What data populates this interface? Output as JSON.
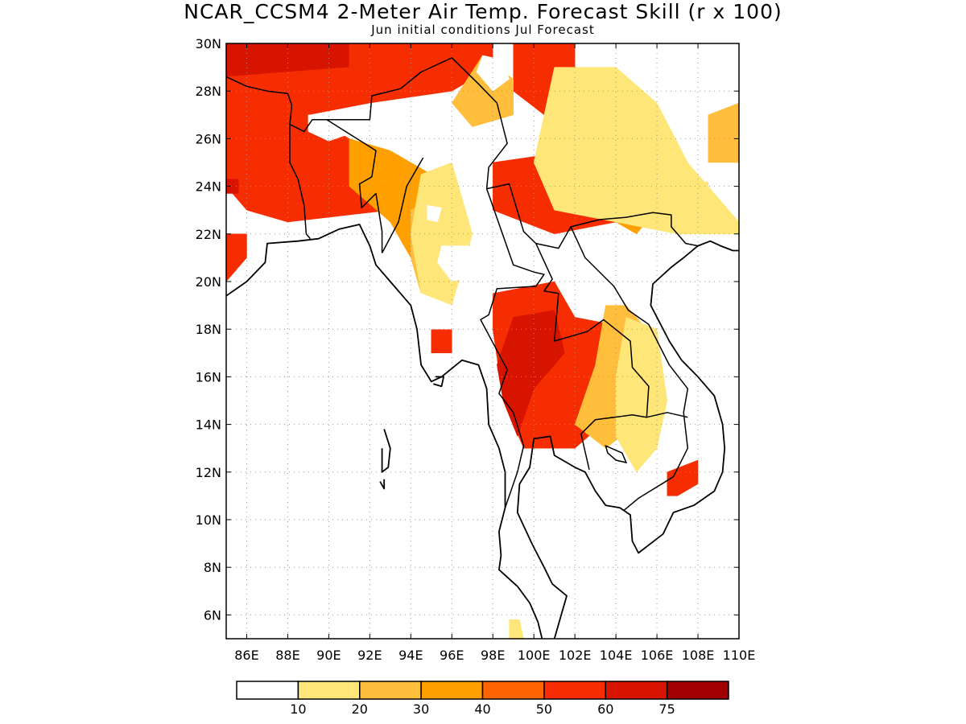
{
  "title": "NCAR_CCSM4 2-Meter Air Temp. Forecast Skill (r x 100)",
  "subtitle": "Jun initial conditions  Jul Forecast",
  "map": {
    "lon_range": [
      85,
      110
    ],
    "lat_range": [
      5,
      30
    ],
    "lat_ticks": [
      {
        "value": 30,
        "label": "30N"
      },
      {
        "value": 28,
        "label": "28N"
      },
      {
        "value": 26,
        "label": "26N"
      },
      {
        "value": 24,
        "label": "24N"
      },
      {
        "value": 22,
        "label": "22N"
      },
      {
        "value": 20,
        "label": "20N"
      },
      {
        "value": 18,
        "label": "18N"
      },
      {
        "value": 16,
        "label": "16N"
      },
      {
        "value": 14,
        "label": "14N"
      },
      {
        "value": 12,
        "label": "12N"
      },
      {
        "value": 10,
        "label": "10N"
      },
      {
        "value": 8,
        "label": "8N"
      },
      {
        "value": 6,
        "label": "6N"
      }
    ],
    "lon_ticks": [
      {
        "value": 86,
        "label": "86E"
      },
      {
        "value": 88,
        "label": "88E"
      },
      {
        "value": 90,
        "label": "90E"
      },
      {
        "value": 92,
        "label": "92E"
      },
      {
        "value": 94,
        "label": "94E"
      },
      {
        "value": 96,
        "label": "96E"
      },
      {
        "value": 98,
        "label": "98E"
      },
      {
        "value": 100,
        "label": "100E"
      },
      {
        "value": 102,
        "label": "102E"
      },
      {
        "value": 104,
        "label": "104E"
      },
      {
        "value": 106,
        "label": "106E"
      },
      {
        "value": 108,
        "label": "108E"
      },
      {
        "value": 110,
        "label": "110E"
      }
    ],
    "grid": true
  },
  "colorbar": {
    "colors": [
      "#ffffff",
      "#ffe678",
      "#ffbe3c",
      "#ffa000",
      "#ff6400",
      "#f52d00",
      "#d71400",
      "#a00000"
    ],
    "labels": [
      "10",
      "20",
      "30",
      "40",
      "50",
      "60",
      "75"
    ]
  },
  "regions": [
    {
      "level": 6,
      "points": [
        [
          85,
          30
        ],
        [
          91,
          30
        ],
        [
          91,
          29
        ],
        [
          88,
          28.8
        ],
        [
          86,
          28.5
        ],
        [
          85,
          28.6
        ]
      ]
    },
    {
      "level": 5,
      "points": [
        [
          85,
          28.6
        ],
        [
          88,
          28.8
        ],
        [
          91,
          29
        ],
        [
          91,
          30
        ],
        [
          98,
          30
        ],
        [
          98,
          29
        ],
        [
          96,
          28
        ],
        [
          92,
          27.5
        ],
        [
          89,
          27
        ],
        [
          86,
          27
        ],
        [
          85,
          27
        ]
      ]
    },
    {
      "level": 5,
      "points": [
        [
          99,
          30
        ],
        [
          102,
          30
        ],
        [
          102,
          28
        ],
        [
          100.5,
          27
        ],
        [
          99,
          28
        ]
      ]
    },
    {
      "level": 5,
      "points": [
        [
          85,
          27
        ],
        [
          89,
          27
        ],
        [
          91,
          26
        ],
        [
          94,
          25
        ],
        [
          95,
          24
        ],
        [
          93,
          23
        ],
        [
          88,
          22.5
        ],
        [
          86,
          23
        ],
        [
          85,
          24
        ]
      ]
    },
    {
      "level": 5,
      "points": [
        [
          98,
          25
        ],
        [
          102,
          25.5
        ],
        [
          105,
          24
        ],
        [
          104,
          22.5
        ],
        [
          101,
          22
        ],
        [
          98,
          23
        ]
      ]
    },
    {
      "level": 5,
      "points": [
        [
          98,
          19.5
        ],
        [
          101,
          20
        ],
        [
          102,
          18.5
        ],
        [
          105,
          18
        ],
        [
          105.5,
          16
        ],
        [
          104,
          14.5
        ],
        [
          102,
          13
        ],
        [
          99.5,
          13
        ],
        [
          98.5,
          15
        ],
        [
          98,
          18
        ]
      ]
    },
    {
      "level": 5,
      "points": [
        [
          85,
          22
        ],
        [
          86,
          22
        ],
        [
          86,
          21
        ],
        [
          85,
          20
        ]
      ]
    },
    {
      "level": 5,
      "points": [
        [
          95,
          18
        ],
        [
          96,
          18
        ],
        [
          96,
          17
        ],
        [
          95,
          17
        ]
      ]
    },
    {
      "level": 5,
      "points": [
        [
          106.5,
          12
        ],
        [
          108,
          12.5
        ],
        [
          108,
          11.5
        ],
        [
          107,
          11
        ],
        [
          106.5,
          11
        ]
      ]
    },
    {
      "level": 6,
      "points": [
        [
          99,
          18.5
        ],
        [
          101,
          18.8
        ],
        [
          101.5,
          17
        ],
        [
          100,
          15.5
        ],
        [
          99.2,
          13.5
        ],
        [
          98.5,
          15
        ],
        [
          98.2,
          16.5
        ]
      ]
    },
    {
      "level": 6,
      "points": [
        [
          85,
          24.3
        ],
        [
          85.6,
          24.3
        ],
        [
          85.6,
          23.7
        ],
        [
          85,
          23.7
        ]
      ]
    },
    {
      "level": 3,
      "points": [
        [
          91,
          26
        ],
        [
          93,
          25.5
        ],
        [
          95,
          24.5
        ],
        [
          96.5,
          23
        ],
        [
          97,
          21
        ],
        [
          95,
          20
        ],
        [
          94,
          21
        ],
        [
          93,
          22.5
        ],
        [
          91,
          24
        ]
      ]
    },
    {
      "level": 3,
      "points": [
        [
          104,
          27
        ],
        [
          106,
          26
        ],
        [
          107,
          24
        ],
        [
          105,
          22
        ],
        [
          104,
          22.5
        ],
        [
          105,
          24
        ],
        [
          103,
          26
        ]
      ]
    },
    {
      "level": 2,
      "points": [
        [
          94,
          23
        ],
        [
          95,
          23.5
        ],
        [
          96,
          22
        ],
        [
          95.5,
          20
        ],
        [
          94.5,
          19.5
        ],
        [
          94,
          21
        ]
      ]
    },
    {
      "level": 2,
      "points": [
        [
          97.5,
          29.5
        ],
        [
          99,
          28.5
        ],
        [
          99,
          27
        ],
        [
          97,
          26.5
        ],
        [
          96,
          27.5
        ]
      ]
    },
    {
      "level": 2,
      "points": [
        [
          103.5,
          19
        ],
        [
          104.5,
          19
        ],
        [
          105.5,
          18
        ],
        [
          105,
          14
        ],
        [
          103.5,
          13
        ],
        [
          102,
          14
        ],
        [
          103,
          16.5
        ]
      ]
    },
    {
      "level": 2,
      "points": [
        [
          108.5,
          27
        ],
        [
          110,
          27.5
        ],
        [
          110,
          25
        ],
        [
          108.5,
          25
        ]
      ]
    },
    {
      "level": 1,
      "points": [
        [
          101,
          29
        ],
        [
          104,
          29
        ],
        [
          106,
          27.5
        ],
        [
          107.5,
          25
        ],
        [
          110,
          22.5
        ],
        [
          110,
          22
        ],
        [
          107,
          22
        ],
        [
          104,
          22.5
        ],
        [
          101,
          23
        ],
        [
          100,
          25
        ]
      ]
    },
    {
      "level": 1,
      "points": [
        [
          94.5,
          24.5
        ],
        [
          96,
          25
        ],
        [
          97,
          22
        ],
        [
          96,
          19
        ],
        [
          94.5,
          19.5
        ],
        [
          94,
          22
        ]
      ]
    },
    {
      "level": 1,
      "points": [
        [
          104.5,
          18.5
        ],
        [
          106,
          18
        ],
        [
          106.5,
          15
        ],
        [
          106,
          13
        ],
        [
          105,
          12
        ],
        [
          104,
          13.5
        ],
        [
          104,
          16
        ]
      ]
    },
    {
      "level": 1,
      "points": [
        [
          98.8,
          5
        ],
        [
          99.5,
          5
        ],
        [
          99.3,
          5.8
        ],
        [
          98.8,
          5.8
        ]
      ]
    },
    {
      "level": 1,
      "points": [
        [
          107.5,
          24
        ],
        [
          108.5,
          24.2
        ],
        [
          108.5,
          23.5
        ],
        [
          107.5,
          23.5
        ]
      ]
    },
    {
      "level": 0,
      "points": [
        [
          97.5,
          29.5
        ],
        [
          98.5,
          29.3
        ],
        [
          98.8,
          28.5
        ],
        [
          98,
          28
        ],
        [
          97.2,
          28.8
        ]
      ]
    },
    {
      "level": 0,
      "points": [
        [
          89,
          27
        ],
        [
          90.5,
          26.8
        ],
        [
          91,
          26.2
        ],
        [
          90,
          25.9
        ],
        [
          89,
          26.3
        ]
      ]
    },
    {
      "level": 0,
      "points": [
        [
          95.5,
          21.5
        ],
        [
          97.5,
          21.5
        ],
        [
          98,
          20.5
        ],
        [
          96,
          20
        ],
        [
          95.3,
          20.8
        ]
      ]
    },
    {
      "level": 0,
      "points": [
        [
          94.8,
          23.2
        ],
        [
          95.5,
          23.1
        ],
        [
          95.3,
          22.5
        ],
        [
          94.8,
          22.6
        ]
      ]
    },
    {
      "level": 0,
      "points": [
        [
          94.5,
          19.5
        ],
        [
          96,
          19
        ],
        [
          96,
          18
        ],
        [
          94.5,
          18
        ],
        [
          94,
          19
        ]
      ]
    }
  ],
  "coastlines": [
    [
      [
        85,
        19.4
      ],
      [
        86,
        20
      ],
      [
        86.9,
        20.8
      ],
      [
        87,
        21.6
      ],
      [
        88.5,
        21.7
      ],
      [
        89.5,
        21.8
      ],
      [
        90.5,
        22.2
      ],
      [
        91.5,
        22.4
      ],
      [
        92,
        21.5
      ],
      [
        92.3,
        20.7
      ],
      [
        93,
        20
      ],
      [
        93.5,
        19.5
      ],
      [
        94,
        19
      ],
      [
        94.3,
        18
      ],
      [
        94.5,
        16.5
      ],
      [
        95,
        15.8
      ],
      [
        95.5,
        16
      ],
      [
        96.5,
        16.7
      ],
      [
        97.3,
        16.5
      ],
      [
        97.7,
        15.5
      ],
      [
        97.8,
        14
      ],
      [
        98.3,
        13
      ],
      [
        98.6,
        12
      ],
      [
        98.6,
        10.5
      ],
      [
        98.3,
        9.5
      ],
      [
        98.4,
        8.5
      ],
      [
        98.3,
        7.9
      ],
      [
        99.2,
        7.2
      ],
      [
        99.8,
        6.5
      ],
      [
        100.2,
        5.7
      ],
      [
        100.4,
        5
      ]
    ],
    [
      [
        101,
        5
      ],
      [
        101.6,
        6.8
      ],
      [
        100.9,
        7.3
      ],
      [
        100.5,
        8
      ],
      [
        99.9,
        9
      ],
      [
        99.2,
        10.3
      ],
      [
        99.3,
        11.5
      ],
      [
        99.8,
        12.2
      ],
      [
        100,
        13.4
      ],
      [
        100.8,
        13.5
      ],
      [
        101,
        12.7
      ],
      [
        102,
        12.2
      ],
      [
        102.5,
        12
      ],
      [
        103,
        11.2
      ],
      [
        103.5,
        10.6
      ],
      [
        104.2,
        10.5
      ],
      [
        104.7,
        10.2
      ],
      [
        104.8,
        9.1
      ],
      [
        105.1,
        8.6
      ],
      [
        106.3,
        9.4
      ],
      [
        106.8,
        10.3
      ],
      [
        107.8,
        10.6
      ],
      [
        108.8,
        11.2
      ],
      [
        109.2,
        12
      ],
      [
        109.3,
        13
      ],
      [
        109.2,
        14
      ],
      [
        108.8,
        15.2
      ],
      [
        108,
        16
      ],
      [
        107.2,
        16.7
      ],
      [
        106.6,
        17.5
      ],
      [
        106,
        18.5
      ],
      [
        105.7,
        19
      ],
      [
        105.8,
        19.9
      ],
      [
        106.7,
        20.6
      ],
      [
        107.3,
        21
      ],
      [
        108,
        21.5
      ],
      [
        108.6,
        21.7
      ],
      [
        109.1,
        21.5
      ],
      [
        109.7,
        21.3
      ],
      [
        110,
        21.3
      ]
    ],
    [
      [
        92.7,
        13.8
      ],
      [
        93,
        13
      ],
      [
        92.9,
        12.2
      ],
      [
        92.6,
        12
      ],
      [
        92.6,
        13
      ]
    ],
    [
      [
        92.7,
        11.7
      ],
      [
        92.7,
        11.3
      ],
      [
        92.5,
        11.6
      ]
    ],
    [
      [
        95.2,
        16
      ],
      [
        95.6,
        16
      ],
      [
        95.5,
        15.6
      ],
      [
        95.1,
        15.7
      ]
    ]
  ],
  "borders": [
    [
      [
        85,
        28.6
      ],
      [
        86,
        28.2
      ],
      [
        87,
        28
      ],
      [
        88,
        27.9
      ],
      [
        88.2,
        27.4
      ],
      [
        88.1,
        26.6
      ],
      [
        88.8,
        26.3
      ],
      [
        89.2,
        26.8
      ],
      [
        90.5,
        26.8
      ],
      [
        92,
        26.8
      ],
      [
        92.1,
        27.8
      ],
      [
        93.5,
        28.1
      ],
      [
        94.5,
        28.8
      ],
      [
        96,
        29.4
      ],
      [
        97.3,
        28.3
      ],
      [
        98.2,
        27.5
      ],
      [
        98.7,
        25.8
      ],
      [
        97.8,
        24.8
      ],
      [
        97.7,
        23.9
      ],
      [
        98.8,
        24.1
      ],
      [
        99.5,
        22.1
      ],
      [
        100.1,
        21.6
      ],
      [
        101.2,
        21.4
      ],
      [
        101.8,
        22.3
      ],
      [
        103.2,
        22.6
      ],
      [
        104.5,
        22.7
      ],
      [
        105.8,
        22.9
      ],
      [
        106.7,
        22.8
      ],
      [
        106.7,
        22.3
      ],
      [
        107.4,
        21.6
      ],
      [
        108,
        21.5
      ]
    ],
    [
      [
        88.1,
        26.6
      ],
      [
        88.1,
        25
      ],
      [
        88.5,
        24.3
      ],
      [
        88.8,
        23.2
      ],
      [
        88.9,
        22
      ],
      [
        89.1,
        21.8
      ]
    ],
    [
      [
        89.9,
        26.8
      ],
      [
        92.3,
        25.5
      ],
      [
        92.1,
        24.4
      ],
      [
        91.5,
        24.1
      ],
      [
        91.6,
        23.1
      ],
      [
        92.3,
        23.7
      ],
      [
        92.6,
        22.1
      ],
      [
        92.6,
        21.2
      ]
    ],
    [
      [
        94.6,
        25.2
      ],
      [
        93.8,
        24
      ],
      [
        93.4,
        22.5
      ],
      [
        92.6,
        21.2
      ]
    ],
    [
      [
        97.7,
        23.9
      ],
      [
        99,
        20.7
      ],
      [
        100,
        20.4
      ],
      [
        100.5,
        20.3
      ],
      [
        100.1,
        19.8
      ],
      [
        98.2,
        19.7
      ],
      [
        97.8,
        18.6
      ],
      [
        97.4,
        18.4
      ],
      [
        98.7,
        16.3
      ],
      [
        98.3,
        15.3
      ],
      [
        99,
        14.5
      ],
      [
        99.5,
        13.1
      ],
      [
        99.2,
        12
      ],
      [
        98.6,
        10.5
      ]
    ],
    [
      [
        100.1,
        21.6
      ],
      [
        100.9,
        20.1
      ],
      [
        100.5,
        19.6
      ],
      [
        101.2,
        19.5
      ],
      [
        101,
        17.5
      ],
      [
        102.6,
        17.9
      ],
      [
        103.4,
        18.4
      ],
      [
        104.7,
        17.5
      ],
      [
        104.8,
        16.4
      ],
      [
        105.6,
        15.6
      ],
      [
        105.5,
        14.3
      ],
      [
        104.8,
        14.4
      ],
      [
        103,
        14.2
      ],
      [
        102.3,
        13.6
      ],
      [
        102.7,
        12.1
      ]
    ],
    [
      [
        101.8,
        22.3
      ],
      [
        102.5,
        21
      ],
      [
        103.9,
        19.8
      ],
      [
        104.6,
        18.8
      ],
      [
        105.6,
        18.2
      ],
      [
        106.6,
        16.5
      ],
      [
        107.5,
        15.5
      ],
      [
        107.3,
        14.5
      ],
      [
        107.5,
        13
      ],
      [
        106.8,
        11.8
      ],
      [
        105.1,
        10.9
      ],
      [
        104.4,
        10.4
      ]
    ],
    [
      [
        105.5,
        14.3
      ],
      [
        106.5,
        14.5
      ],
      [
        107.5,
        14.3
      ]
    ]
  ],
  "lakes": [
    [
      [
        103.5,
        13.1
      ],
      [
        104.3,
        12.8
      ],
      [
        104.5,
        12.4
      ],
      [
        104,
        12.5
      ],
      [
        103.6,
        12.8
      ]
    ]
  ]
}
